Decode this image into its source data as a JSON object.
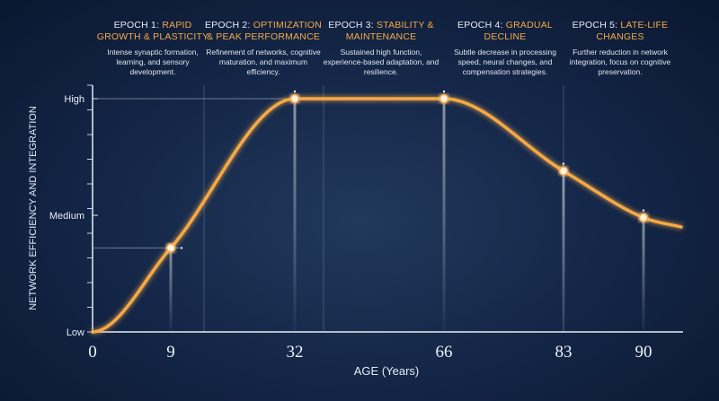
{
  "chart_data": {
    "type": "line",
    "categories": [
      "0",
      "9",
      "32",
      "66",
      "83",
      "90",
      null
    ],
    "series": [
      {
        "name": "Network efficiency",
        "color": "#f5a944",
        "values": [
          0,
          0.72,
          2,
          2,
          1.38,
          0.98,
          0.9
        ]
      }
    ],
    "ylim": [
      0,
      2.1
    ],
    "yticks": [
      {
        "value": 0,
        "label": "Low"
      },
      {
        "value": 1,
        "label": "Medium"
      },
      {
        "value": 2,
        "label": "High"
      }
    ],
    "y_label": "NETWORK EFFICIENCY AND INTEGRATION",
    "x_label": "AGE (Years)",
    "annotations": [
      {
        "label": "EPOCH 1:",
        "title": "RAPID GROWTH & PLASTICITY",
        "text": "Intense synaptic formation, learning, and sensory development."
      },
      {
        "label": "EPOCH 2:",
        "title": "OPTIMIZATION & PEAK PERFORMANCE",
        "text": "Refinement of networks, cognitive maturation, and maximum efficiency."
      },
      {
        "label": "EPOCH 3:",
        "title": "STABILITY & MAINTENANCE",
        "text": "Sustained high function, experience-based adaptation, and resilience."
      },
      {
        "label": "EPOCH 4:",
        "title": "GRADUAL DECLINE",
        "text": "Subtle decrease in processing speed, neural changes, and compensation strategies."
      },
      {
        "label": "EPOCH 5:",
        "title": "LATE-LIFE CHANGES",
        "text": "Further reduction in network integration, focus on cognitive preservation."
      }
    ]
  }
}
